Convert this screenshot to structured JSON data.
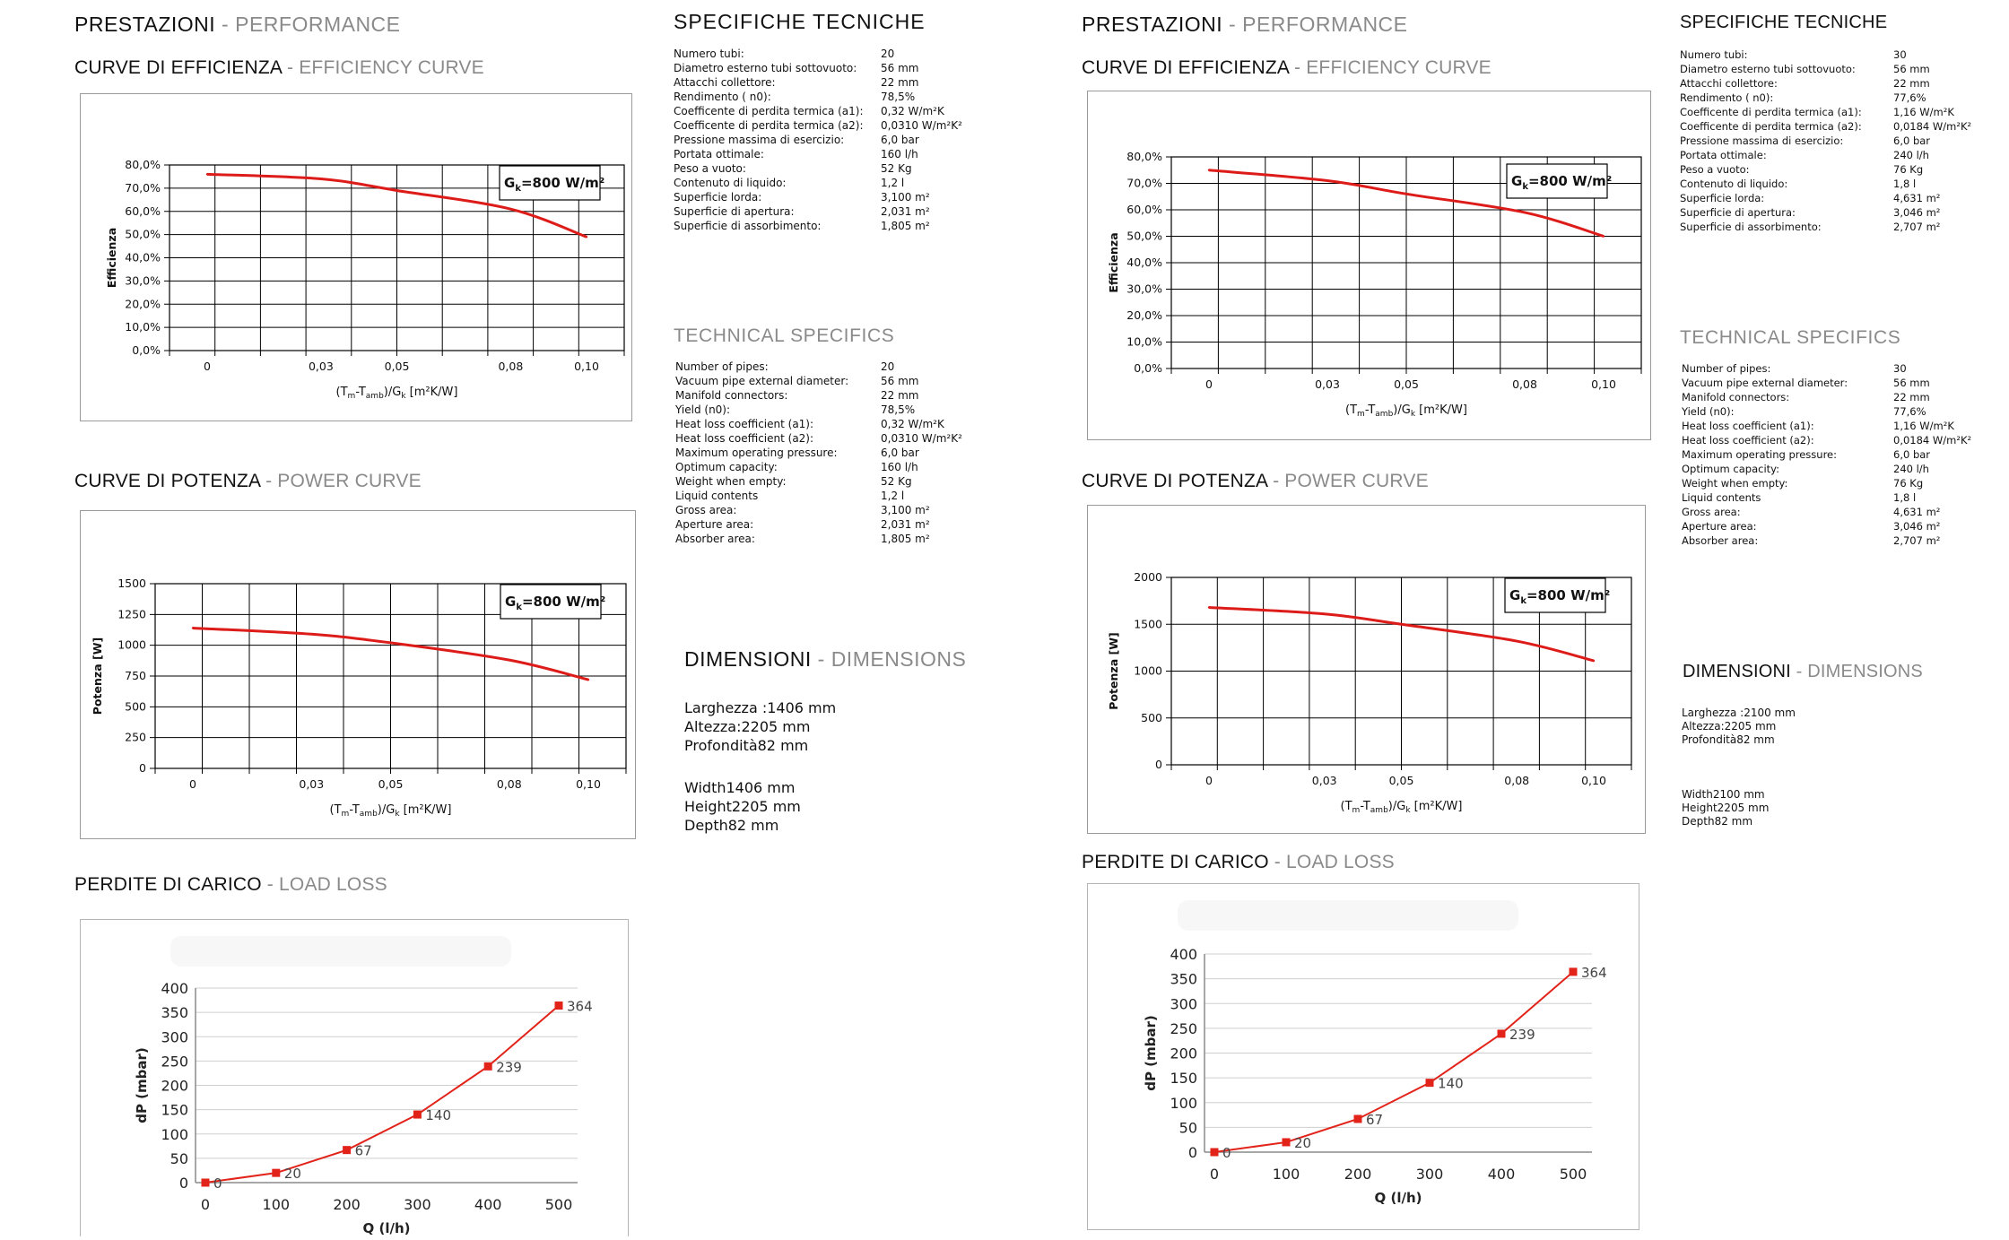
{
  "panels": [
    {
      "id": "left",
      "perf_title": {
        "it": "PRESTAZIONI",
        "en": "PERFORMANCE"
      },
      "eff_title": {
        "it": "CURVE DI EFFICIENZA",
        "en": "EFFICIENCY CURVE"
      },
      "pow_title": {
        "it": "CURVE DI POTENZA",
        "en": "POWER CURVE"
      },
      "loss_title": {
        "it": "PERDITE DI CARICO",
        "en": "LOAD LOSS"
      },
      "spec_title": "SPECIFICHE TECNICHE",
      "tech_title": "TECHNICAL SPECIFICS",
      "dims_title": {
        "it": "DIMENSIONI",
        "en": "DIMENSIONS"
      },
      "specs_it": [
        {
          "k": "Numero  tubi:",
          "v": "20"
        },
        {
          "k": "Diametro esterno tubi sottovuoto:",
          "v": "56 mm"
        },
        {
          "k": "Attacchi collettore:",
          "v": "22 mm"
        },
        {
          "k": "Rendimento ( n0):",
          "v": "78,5%"
        },
        {
          "k": "Coefficente di perdita termica (a1):",
          "v": "0,32 W/m²K"
        },
        {
          "k": "Coefficente di perdita termica (a2):",
          "v": "0,0310 W/m²K²"
        },
        {
          "k": "Pressione massima di esercizio:",
          "v": "6,0 bar"
        },
        {
          "k": "Portata ottimale:",
          "v": "160 l/h"
        },
        {
          "k": "Peso a vuoto:",
          "v": "52 Kg"
        },
        {
          "k": "Contenuto di liquido:",
          "v": "1,2 l"
        },
        {
          "k": "Superficie lorda:",
          "v": "3,100 m²"
        },
        {
          "k": "Superficie di apertura:",
          "v": "2,031 m²"
        },
        {
          "k": "Superficie di assorbimento:",
          "v": "1,805 m²"
        }
      ],
      "specs_en": [
        {
          "k": "Number of pipes:",
          "v": "20"
        },
        {
          "k": "Vacuum pipe external diameter:",
          "v": "56 mm"
        },
        {
          "k": "Manifold connectors:",
          "v": "22 mm"
        },
        {
          "k": "Yield (n0):",
          "v": "78,5%"
        },
        {
          "k": "Heat loss coefficient (a1):",
          "v": "0,32 W/m²K"
        },
        {
          "k": "Heat loss coefficient (a2):",
          "v": "0,0310 W/m²K²"
        },
        {
          "k": "Maximum operating pressure:",
          "v": "6,0 bar"
        },
        {
          "k": "Optimum capacity:",
          "v": "160 l/h"
        },
        {
          "k": "Weight when empty:",
          "v": "52 Kg"
        },
        {
          "k": "Liquid contents",
          "v": "1,2 l"
        },
        {
          "k": "Gross area:",
          "v": "3,100 m²"
        },
        {
          "k": "Aperture area:",
          "v": "2,031 m²"
        },
        {
          "k": "Absorber area:",
          "v": "1,805 m²"
        }
      ],
      "dims_it": [
        {
          "k": "Larghezza :",
          "v": "1406 mm"
        },
        {
          "k": "Altezza:",
          "v": "2205 mm"
        },
        {
          "k": "Profondità",
          "v": "82 mm"
        }
      ],
      "dims_en": [
        {
          "k": "Width",
          "v": "1406 mm"
        },
        {
          "k": "Height",
          "v": "2205 mm"
        },
        {
          "k": "Depth",
          "v": "82 mm"
        }
      ]
    },
    {
      "id": "right",
      "perf_title": {
        "it": "PRESTAZIONI",
        "en": "PERFORMANCE"
      },
      "eff_title": {
        "it": "CURVE DI EFFICIENZA",
        "en": "EFFICIENCY CURVE"
      },
      "pow_title": {
        "it": "CURVE DI POTENZA",
        "en": "POWER CURVE"
      },
      "loss_title": {
        "it": "PERDITE DI CARICO",
        "en": "LOAD LOSS"
      },
      "spec_title": "SPECIFICHE TECNICHE",
      "tech_title": "TECHNICAL SPECIFICS",
      "dims_title": {
        "it": "DIMENSIONI",
        "en": "DIMENSIONS"
      },
      "specs_it": [
        {
          "k": "Numero  tubi:",
          "v": "30"
        },
        {
          "k": "Diametro esterno tubi sottovuoto:",
          "v": "56 mm"
        },
        {
          "k": "Attacchi collettore:",
          "v": "22 mm"
        },
        {
          "k": "Rendimento ( n0):",
          "v": "77,6%"
        },
        {
          "k": "Coefficente di perdita termica (a1):",
          "v": "1,16 W/m²K"
        },
        {
          "k": "Coefficente di perdita termica (a2):",
          "v": "0,0184 W/m²K²"
        },
        {
          "k": "Pressione massima di esercizio:",
          "v": "6,0 bar"
        },
        {
          "k": "Portata ottimale:",
          "v": "240 l/h"
        },
        {
          "k": "Peso a vuoto:",
          "v": "76 Kg"
        },
        {
          "k": "Contenuto di liquido:",
          "v": "1,8 l"
        },
        {
          "k": "Superficie lorda:",
          "v": "4,631 m²"
        },
        {
          "k": "Superficie di apertura:",
          "v": "3,046 m²"
        },
        {
          "k": "Superficie di assorbimento:",
          "v": "2,707 m²"
        }
      ],
      "specs_en": [
        {
          "k": "Number of pipes:",
          "v": "30"
        },
        {
          "k": "Vacuum pipe external diameter:",
          "v": "56 mm"
        },
        {
          "k": "Manifold connectors:",
          "v": "22 mm"
        },
        {
          "k": "Yield (n0):",
          "v": "77,6%"
        },
        {
          "k": "Heat loss coefficient (a1):",
          "v": "1,16 W/m²K"
        },
        {
          "k": "Heat loss coefficient (a2):",
          "v": "0,0184 W/m²K²"
        },
        {
          "k": "Maximum operating pressure:",
          "v": "6,0 bar"
        },
        {
          "k": "Optimum capacity:",
          "v": "240 l/h"
        },
        {
          "k": "Weight when empty:",
          "v": "76 Kg"
        },
        {
          "k": "Liquid contents",
          "v": "1,8 l"
        },
        {
          "k": "Gross area:",
          "v": "4,631 m²"
        },
        {
          "k": "Aperture area:",
          "v": "3,046 m²"
        },
        {
          "k": "Absorber area:",
          "v": "2,707 m²"
        }
      ],
      "dims_it": [
        {
          "k": "Larghezza :",
          "v": "2100 mm"
        },
        {
          "k": "Altezza:",
          "v": "2205 mm"
        },
        {
          "k": "Profondità",
          "v": "82 mm"
        }
      ],
      "dims_en": [
        {
          "k": "Width",
          "v": "2100 mm"
        },
        {
          "k": "Height",
          "v": "2205 mm"
        },
        {
          "k": "Depth",
          "v": "82 mm"
        }
      ]
    }
  ],
  "chart_data": [
    {
      "id": "left-efficiency",
      "type": "line",
      "x": [
        0,
        0.03,
        0.05,
        0.08,
        0.1
      ],
      "values": [
        76,
        74,
        69,
        61,
        49
      ],
      "xticks": [
        "0",
        "0,03",
        "0,05",
        "0,08",
        "0,10"
      ],
      "yticks": [
        "0,0%",
        "10,0%",
        "20,0%",
        "30,0%",
        "40,0%",
        "50,0%",
        "60,0%",
        "70,0%",
        "80,0%"
      ],
      "ylim": [
        0,
        80
      ],
      "ylabel": "Efficienza",
      "xlabel_main": "(T",
      "xlabel_sub1": "m",
      "xlabel_mid": "-T",
      "xlabel_sub2": "amb",
      "xlabel_end": ")/G",
      "xlabel_sub3": "k",
      "xlabel_units": "[m²K/W]",
      "annotation": "G",
      "annotation_sub": "k",
      "annotation_val": "=800 W/m²",
      "line_color": "#dd1c1a"
    },
    {
      "id": "left-power",
      "type": "line",
      "x": [
        0,
        0.03,
        0.05,
        0.08,
        0.1
      ],
      "values": [
        1140,
        1090,
        1020,
        880,
        720
      ],
      "xticks": [
        "0",
        "0,03",
        "0,05",
        "0,08",
        "0,10"
      ],
      "yticks": [
        "0",
        "250",
        "500",
        "750",
        "1000",
        "1250",
        "1500"
      ],
      "ylim": [
        0,
        1500
      ],
      "ylabel": "Potenza [W]",
      "xlabel_main": "(T",
      "xlabel_sub1": "m",
      "xlabel_mid": "-T",
      "xlabel_sub2": "amb",
      "xlabel_end": ")/G",
      "xlabel_sub3": "k",
      "xlabel_units": "[m²K/W]",
      "annotation": "G",
      "annotation_sub": "k",
      "annotation_val": "=800 W/m²",
      "line_color": "#dd1c1a"
    },
    {
      "id": "left-loadloss",
      "type": "line",
      "x": [
        0,
        100,
        200,
        300,
        400,
        500
      ],
      "values": [
        0,
        20,
        67,
        140,
        239,
        364
      ],
      "labels": [
        "0",
        "20",
        "67",
        "140",
        "239",
        "364"
      ],
      "xticks": [
        "0",
        "100",
        "200",
        "300",
        "400",
        "500"
      ],
      "yticks": [
        "0",
        "50",
        "100",
        "150",
        "200",
        "250",
        "300",
        "350",
        "400"
      ],
      "ylim": [
        0,
        400
      ],
      "xlabel": "Q (l/h)",
      "ylabel": "dP (mbar)",
      "line_color": "#e2231a"
    },
    {
      "id": "right-efficiency",
      "type": "line",
      "x": [
        0,
        0.03,
        0.05,
        0.08,
        0.1
      ],
      "values": [
        75,
        71,
        66,
        59,
        50
      ],
      "xticks": [
        "0",
        "0,03",
        "0,05",
        "0,08",
        "0,10"
      ],
      "yticks": [
        "0,0%",
        "10,0%",
        "20,0%",
        "30,0%",
        "40,0%",
        "50,0%",
        "60,0%",
        "70,0%",
        "80,0%"
      ],
      "ylim": [
        0,
        80
      ],
      "ylabel": "Efficienza",
      "xlabel_main": "(T",
      "xlabel_sub1": "m",
      "xlabel_mid": "-T",
      "xlabel_sub2": "amb",
      "xlabel_end": ")/G",
      "xlabel_sub3": "k",
      "xlabel_units": "[m²K/W]",
      "annotation": "G",
      "annotation_sub": "k",
      "annotation_val": "=800 W/m²",
      "line_color": "#dd1c1a"
    },
    {
      "id": "right-power",
      "type": "line",
      "x": [
        0,
        0.03,
        0.05,
        0.08,
        0.1
      ],
      "values": [
        1680,
        1610,
        1500,
        1320,
        1110
      ],
      "xticks": [
        "0",
        "0,03",
        "0,05",
        "0,08",
        "0,10"
      ],
      "yticks": [
        "0",
        "500",
        "1000",
        "1500",
        "2000"
      ],
      "ylim": [
        0,
        2000
      ],
      "ylabel": "Potenza [W]",
      "xlabel_main": "(T",
      "xlabel_sub1": "m",
      "xlabel_mid": "-T",
      "xlabel_sub2": "amb",
      "xlabel_end": ")/G",
      "xlabel_sub3": "k",
      "xlabel_units": "[m²K/W]",
      "annotation": "G",
      "annotation_sub": "k",
      "annotation_val": "=800 W/m²",
      "line_color": "#dd1c1a"
    },
    {
      "id": "right-loadloss",
      "type": "line",
      "x": [
        0,
        100,
        200,
        300,
        400,
        500
      ],
      "values": [
        0,
        20,
        67,
        140,
        239,
        364
      ],
      "labels": [
        "0",
        "20",
        "67",
        "140",
        "239",
        "364"
      ],
      "xticks": [
        "0",
        "100",
        "200",
        "300",
        "400",
        "500"
      ],
      "yticks": [
        "0",
        "50",
        "100",
        "150",
        "200",
        "250",
        "300",
        "350",
        "400"
      ],
      "ylim": [
        0,
        400
      ],
      "xlabel": "Q (l/h)",
      "ylabel": "dP (mbar)",
      "line_color": "#e2231a"
    }
  ]
}
